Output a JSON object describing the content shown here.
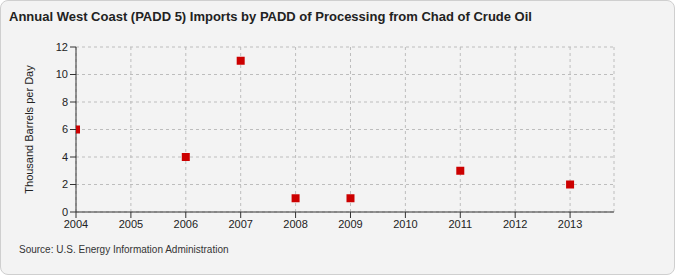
{
  "chart_data": {
    "type": "scatter",
    "title": "Annual West Coast (PADD 5) Imports by PADD of Processing from Chad of Crude Oil",
    "y_label": "Thousand Barrels per Day",
    "source": "Source: U.S. Energy Information Administration",
    "x": [
      2004,
      2006,
      2007,
      2008,
      2009,
      2011,
      2013
    ],
    "values": [
      6,
      4,
      11,
      1,
      1,
      3,
      2
    ],
    "color": "#cc0000",
    "marker": "square",
    "xlim": [
      2004,
      2013.8
    ],
    "xticks": [
      2004,
      2005,
      2006,
      2007,
      2008,
      2009,
      2010,
      2011,
      2012,
      2013
    ],
    "ylim": [
      0,
      12
    ],
    "yticks": [
      0,
      2,
      4,
      6,
      8,
      10,
      12
    ],
    "grid": true
  }
}
